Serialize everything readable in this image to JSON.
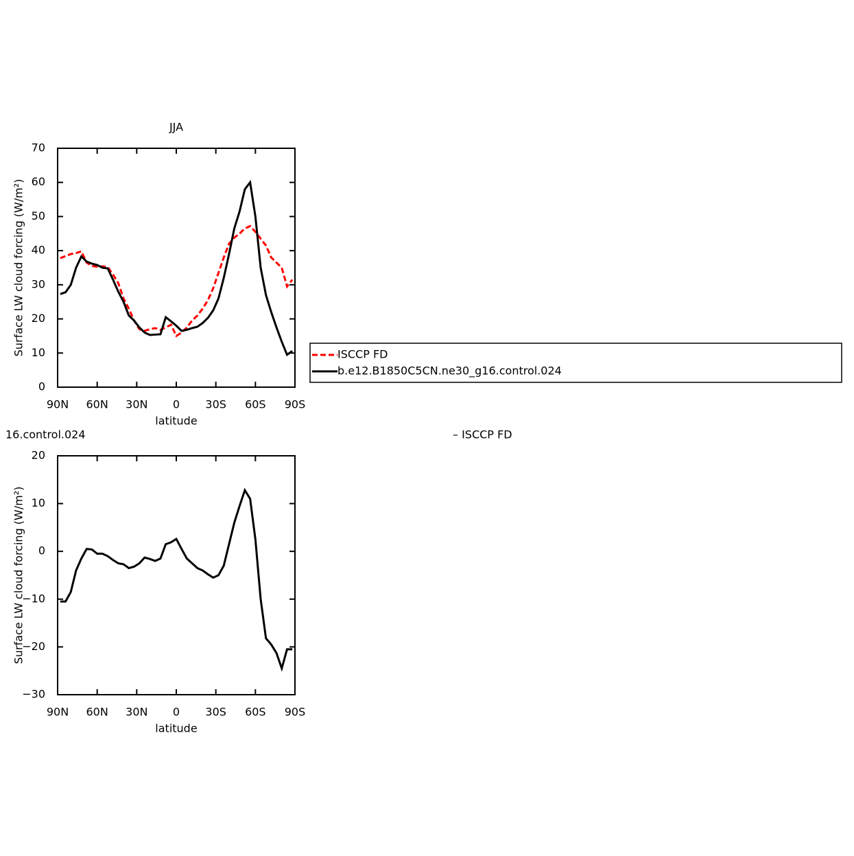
{
  "chart_data": [
    {
      "type": "line",
      "title": "JJA",
      "xlabel": "latitude",
      "ylabel": "Surface LW cloud forcing (W/m²)",
      "x": [
        88,
        84,
        80,
        76,
        72,
        68,
        64,
        60,
        56,
        52,
        48,
        44,
        40,
        36,
        32,
        28,
        24,
        20,
        16,
        12,
        8,
        4,
        0,
        -4,
        -8,
        -12,
        -16,
        -20,
        -24,
        -28,
        -32,
        -36,
        -40,
        -44,
        -48,
        -52,
        -56,
        -60,
        -64,
        -68,
        -72,
        -76,
        -80,
        -84,
        -88
      ],
      "series": [
        {
          "name": "ISCCP FD",
          "color": "#ff0000",
          "style": "dashed",
          "values": [
            37.8,
            38.4,
            39.0,
            39.3,
            39.8,
            36.5,
            35.5,
            35.3,
            35.4,
            35.2,
            33.0,
            30.5,
            26.0,
            23.0,
            19.5,
            17.0,
            16.5,
            17.0,
            17.3,
            16.8,
            17.5,
            18.3,
            15.0,
            16.0,
            17.5,
            19.5,
            21.0,
            23.0,
            25.5,
            29.0,
            33.5,
            38.0,
            42.0,
            43.8,
            45.0,
            46.5,
            47.2,
            45.5,
            43.5,
            41.5,
            38.0,
            36.5,
            35.0,
            29.5,
            31.5
          ]
        },
        {
          "name": "b.e12.B1850C5CN.ne30_g16.control.024",
          "color": "#000000",
          "style": "solid",
          "values": [
            27.3,
            27.8,
            30.0,
            35.0,
            38.3,
            36.8,
            36.2,
            35.8,
            35.0,
            34.8,
            31.5,
            28.0,
            25.0,
            21.0,
            19.5,
            17.5,
            16.0,
            15.3,
            15.4,
            15.5,
            20.5,
            19.3,
            18.0,
            16.5,
            16.8,
            17.3,
            17.7,
            18.8,
            20.3,
            22.5,
            26.0,
            32.0,
            39.0,
            46.5,
            51.5,
            58.0,
            60.0,
            50.0,
            35.0,
            27.0,
            22.0,
            17.5,
            13.3,
            9.5,
            10.6
          ]
        }
      ],
      "xlim": [
        90,
        -90
      ],
      "xticks": [
        {
          "value": 90,
          "label": "90N"
        },
        {
          "value": 60,
          "label": "60N"
        },
        {
          "value": 30,
          "label": "30N"
        },
        0,
        {
          "value": -30,
          "label": "30S"
        },
        {
          "value": -60,
          "label": "60S"
        },
        {
          "value": -90,
          "label": "90S"
        }
      ],
      "ylim": [
        0,
        70
      ],
      "yticks": [
        0,
        10,
        20,
        30,
        40,
        50,
        60,
        70
      ]
    },
    {
      "type": "line",
      "title_left": "16.control.024",
      "title_right": "– ISCCP FD",
      "xlabel": "latitude",
      "ylabel": "Surface LW cloud forcing (W/m²)",
      "x": [
        88,
        84,
        80,
        76,
        72,
        68,
        64,
        60,
        56,
        52,
        48,
        44,
        40,
        36,
        32,
        28,
        24,
        20,
        16,
        12,
        8,
        4,
        0,
        -4,
        -8,
        -12,
        -16,
        -20,
        -24,
        -28,
        -32,
        -36,
        -40,
        -44,
        -48,
        -52,
        -56,
        -60,
        -64,
        -68,
        -72,
        -76,
        -80,
        -84,
        -88
      ],
      "values": [
        -10.5,
        -10.5,
        -8.5,
        -4.0,
        -1.5,
        0.5,
        0.4,
        -0.5,
        -0.5,
        -1.0,
        -1.8,
        -2.5,
        -2.7,
        -3.5,
        -3.2,
        -2.5,
        -1.3,
        -1.6,
        -2.0,
        -1.5,
        1.5,
        1.9,
        2.6,
        0.5,
        -1.5,
        -2.5,
        -3.5,
        -4.0,
        -4.8,
        -5.5,
        -5.0,
        -3.0,
        1.5,
        6.0,
        9.5,
        12.8,
        11.0,
        2.5,
        -10.0,
        -18.2,
        -19.5,
        -21.3,
        -24.5,
        -20.5,
        -20.5
      ],
      "color": "#000000",
      "xlim": [
        90,
        -90
      ],
      "xticks": [
        {
          "value": 90,
          "label": "90N"
        },
        {
          "value": 60,
          "label": "60N"
        },
        {
          "value": 30,
          "label": "30N"
        },
        0,
        {
          "value": -30,
          "label": "30S"
        },
        {
          "value": -60,
          "label": "60S"
        },
        {
          "value": -90,
          "label": "90S"
        }
      ],
      "ylim": [
        -30,
        20
      ],
      "yticks": [
        {
          "value": -30,
          "label": "−30"
        },
        {
          "value": -20,
          "label": "−20"
        },
        {
          "value": -10,
          "label": "−10"
        },
        0,
        10,
        20
      ]
    }
  ]
}
